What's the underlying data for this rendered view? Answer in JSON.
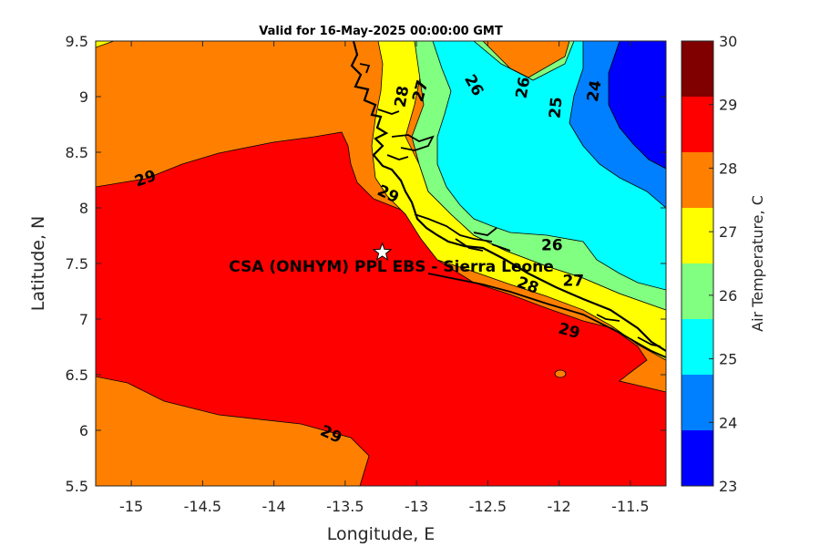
{
  "title": "Valid for 16-May-2025 00:00:00 GMT",
  "xlabel": "Longitude, E",
  "ylabel": "Latitude, N",
  "colorbar_label": "Air Temperature, C",
  "site_label": "CSA (ONHYM) PPL EBS - Sierra Leone",
  "site": {
    "lon": -13.24,
    "lat": 7.6
  },
  "xlim": [
    -15.25,
    -11.25
  ],
  "ylim": [
    5.5,
    9.5
  ],
  "x_ticks": [
    {
      "value": -15,
      "label": "-15"
    },
    {
      "value": -14.5,
      "label": "-14.5"
    },
    {
      "value": -14,
      "label": "-14"
    },
    {
      "value": -13.5,
      "label": "-13.5"
    },
    {
      "value": -13,
      "label": "-13"
    },
    {
      "value": -12.5,
      "label": "-12.5"
    },
    {
      "value": -12,
      "label": "-12"
    },
    {
      "value": -11.5,
      "label": "-11.5"
    }
  ],
  "y_ticks": [
    {
      "value": 5.5,
      "label": "5.5"
    },
    {
      "value": 6,
      "label": "6"
    },
    {
      "value": 6.5,
      "label": "6.5"
    },
    {
      "value": 7,
      "label": "7"
    },
    {
      "value": 7.5,
      "label": "7.5"
    },
    {
      "value": 8,
      "label": "8"
    },
    {
      "value": 8.5,
      "label": "8.5"
    },
    {
      "value": 9,
      "label": "9"
    },
    {
      "value": 9.5,
      "label": "9.5"
    }
  ],
  "colorbar": {
    "range": [
      23,
      30
    ],
    "ticks": [
      "23",
      "24",
      "25",
      "26",
      "27",
      "28",
      "29",
      "30"
    ],
    "colors": [
      "#0000ff",
      "#0080ff",
      "#00ffff",
      "#80ff80",
      "#ffff00",
      "#ff8000",
      "#ff0000",
      "#800000"
    ]
  },
  "contour_labels": [
    {
      "text": "29",
      "lon": -14.9,
      "lat": 8.26,
      "rot": -20
    },
    {
      "text": "29",
      "lon": -13.2,
      "lat": 8.12,
      "rot": 25
    },
    {
      "text": "28",
      "lon": -13.1,
      "lat": 9.0,
      "rot": -80
    },
    {
      "text": "27",
      "lon": -12.97,
      "lat": 9.05,
      "rot": -75
    },
    {
      "text": "26",
      "lon": -12.6,
      "lat": 9.1,
      "rot": 60
    },
    {
      "text": "26",
      "lon": -12.25,
      "lat": 9.08,
      "rot": -80
    },
    {
      "text": "25",
      "lon": -12.02,
      "lat": 8.9,
      "rot": -85
    },
    {
      "text": "24",
      "lon": -11.75,
      "lat": 9.05,
      "rot": -80
    },
    {
      "text": "26",
      "lon": -12.05,
      "lat": 7.66,
      "rot": 0
    },
    {
      "text": "27",
      "lon": -11.9,
      "lat": 7.34,
      "rot": 0
    },
    {
      "text": "28",
      "lon": -12.22,
      "lat": 7.3,
      "rot": 20
    },
    {
      "text": "29",
      "lon": -11.93,
      "lat": 6.89,
      "rot": 15
    },
    {
      "text": "29",
      "lon": -13.6,
      "lat": 5.96,
      "rot": 25
    }
  ]
}
